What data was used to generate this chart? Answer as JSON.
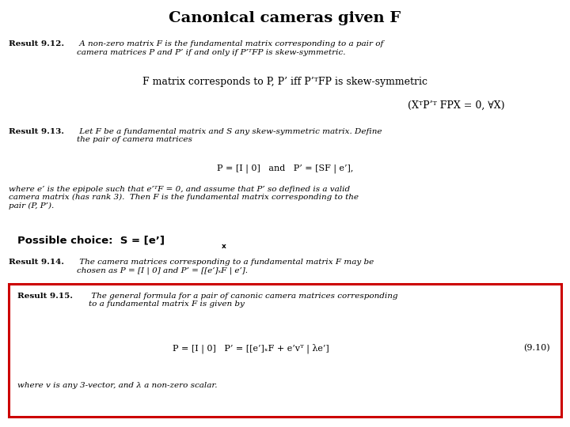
{
  "title": "Canonical cameras given F",
  "bg_color": "#ffffff",
  "title_fontsize": 14,
  "result912_bold": "Result 9.12.",
  "result912_italic": " A non-zero matrix F is the fundamental matrix corresponding to a pair of\ncamera matrices P and P’ if and only if P’ᵀFP is skew-symmetric.",
  "highlight_line": "F matrix corresponds to P, P’ iff P’ᵀFP is skew-symmetric",
  "math_line": "(XᵀP’ᵀ FPX = 0, ∀X)",
  "result913_bold": "Result 9.13.",
  "result913_italic": " Let F be a fundamental matrix and S any skew-symmetric matrix. Define\nthe pair of camera matrices",
  "eq913": "P = [I | 0]   and   P’ = [SF | e’],",
  "result913_body": "where e’ is the epipole such that e’ᵀF = 0, and assume that P’ so defined is a valid\ncamera matrix (has rank 3).  Then F is the fundamental matrix corresponding to the\npair (P, P’).",
  "possible_choice": "Possible choice:  S = [e’]",
  "possible_choice_sub": "x",
  "result914_bold": "Result 9.14.",
  "result914_italic": " The camera matrices corresponding to a fundamental matrix F may be\nchosen as P = [I | 0] and P’ = [[e’]ₓF | e’].",
  "result915_bold": "Result 9.15.",
  "result915_italic": " The general formula for a pair of canonic camera matrices corresponding\nto a fundamental matrix F is given by",
  "eq915": "P = [I | 0]   P’ = [[e’]ₓF + e’vᵀ | λe’]",
  "eq915_num": "(9.10)",
  "result915_footer": "where v is any 3-vector, and λ a non-zero scalar.",
  "box_color": "#cc0000",
  "small_fs": 7.5,
  "mid_fs": 9.0,
  "eq_fs": 8.0,
  "possible_fs": 9.5
}
